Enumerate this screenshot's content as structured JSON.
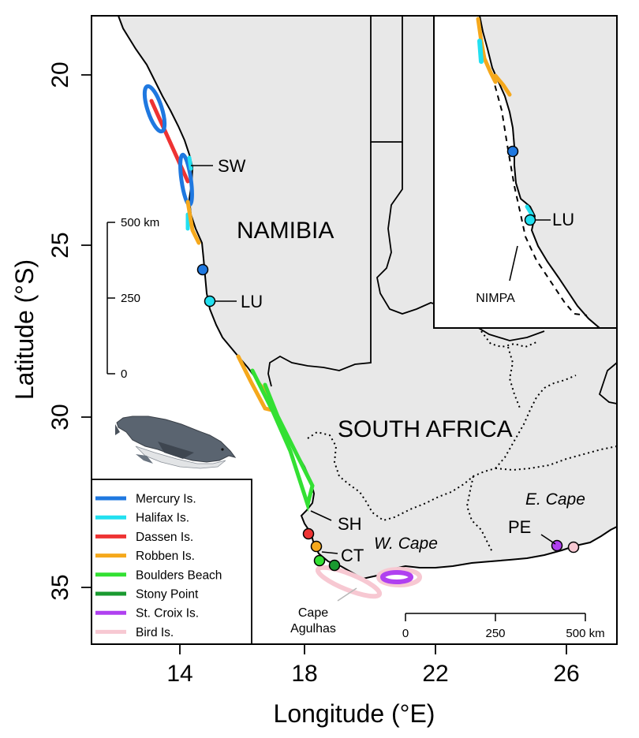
{
  "axes": {
    "x_title": "Longitude (°E)",
    "y_title": "Latitude (°S)",
    "x_ticks": [
      "14",
      "18",
      "22",
      "26"
    ],
    "y_ticks": [
      "20",
      "25",
      "30",
      "35"
    ]
  },
  "regions": {
    "namibia": "NAMIBIA",
    "south_africa": "SOUTH AFRICA",
    "w_cape": "W. Cape",
    "e_cape": "E. Cape"
  },
  "sites": {
    "sw": "SW",
    "lu": "LU",
    "sh": "SH",
    "ct": "CT",
    "pe": "PE",
    "cape_agulhas_1": "Cape",
    "cape_agulhas_2": "Agulhas"
  },
  "inset": {
    "lu": "LU",
    "nimpa": "NIMPA"
  },
  "scale_vertical": {
    "top": "500 km",
    "mid": "250",
    "bottom": "0"
  },
  "scale_horizontal": {
    "left": "0",
    "mid": "250",
    "right": "500 km"
  },
  "legend": [
    {
      "label": "Mercury Is.",
      "color": "#1f78e0"
    },
    {
      "label": "Halifax Is.",
      "color": "#22e0f0"
    },
    {
      "label": "Dassen Is.",
      "color": "#ee3333"
    },
    {
      "label": "Robben Is.",
      "color": "#f5a81c"
    },
    {
      "label": "Boulders Beach",
      "color": "#33e033"
    },
    {
      "label": "Stony Point",
      "color": "#1a9a30"
    },
    {
      "label": "St. Croix Is.",
      "color": "#b040f0"
    },
    {
      "label": "Bird Is.",
      "color": "#f7c8d2"
    }
  ],
  "colors": {
    "land": "#e8e8e8",
    "sea": "#ffffff"
  }
}
